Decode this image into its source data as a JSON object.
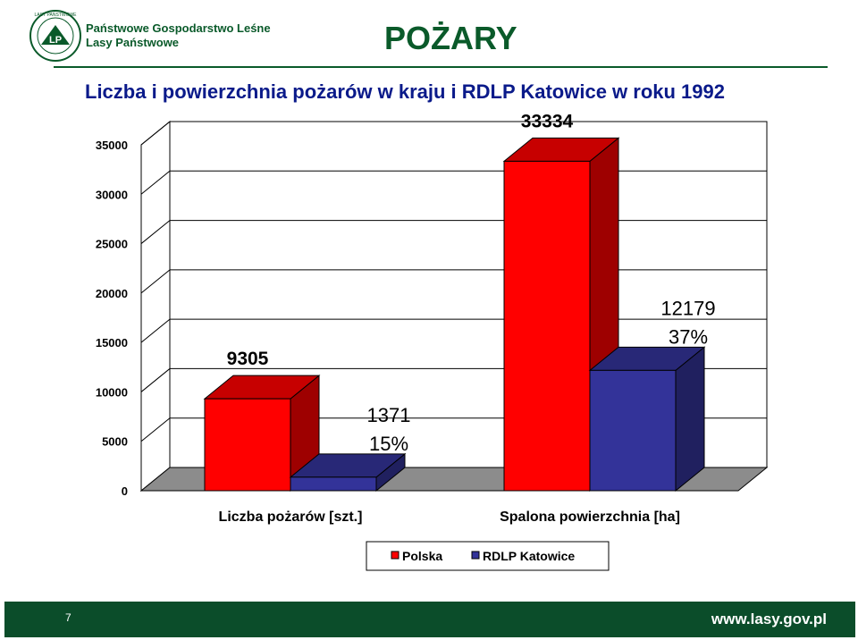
{
  "header": {
    "org_line1": "Państwowe Gospodarstwo Leśne",
    "org_line2": "Lasy Państwowe",
    "logo_text": "LASY PAŃSTWOWE",
    "logo_monogram": "LP",
    "title": "POŻARY",
    "subtitle": "Liczba i powierzchnia pożarów w kraju i RDLP Katowice w roku 1992"
  },
  "chart_data": {
    "type": "bar",
    "style": "3d-clustered",
    "categories": [
      "Liczba pożarów [szt.]",
      "Spalona powierzchnia [ha]"
    ],
    "series": [
      {
        "name": "Polska",
        "values": [
          9305,
          33334
        ],
        "labels": [
          "9305",
          "33334"
        ],
        "color": "#ff0000"
      },
      {
        "name": "RDLP Katowice",
        "values": [
          1371,
          12179
        ],
        "labels": [
          "1371\n15%",
          "12179\n37%"
        ],
        "color": "#333399"
      }
    ],
    "ylim": [
      0,
      35000
    ],
    "yticks": [
      "0",
      "5000",
      "10000",
      "15000",
      "20000",
      "25000",
      "30000",
      "35000"
    ],
    "grid": true,
    "legend": "bottom"
  },
  "footer": {
    "page": "7",
    "url": "www.lasy.gov.pl"
  }
}
